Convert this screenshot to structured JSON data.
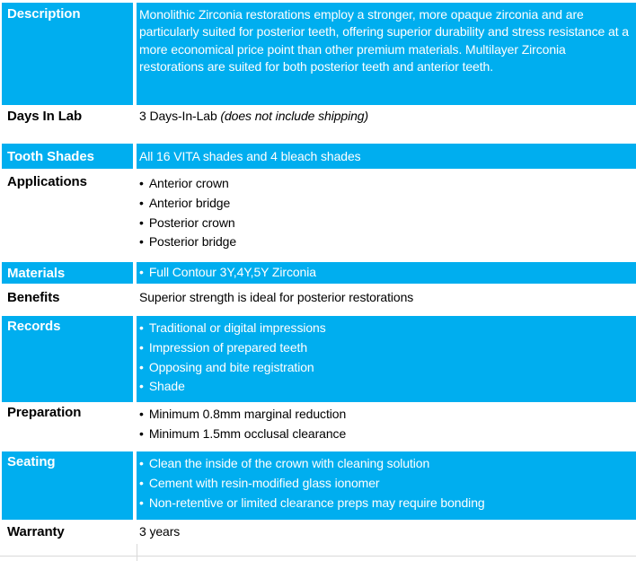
{
  "theme": {
    "accent_color": "#00AEEF",
    "text_on_accent": "#FFFFFF",
    "text_color": "#000000",
    "grid_line_color": "#D9D9D9",
    "background": "#FFFFFF"
  },
  "table": {
    "bullet_char": "•",
    "rows": [
      {
        "label": "Description",
        "highlight": true,
        "paragraph": "Monolithic Zirconia restorations employ a stronger, more opaque zirconia and are particularly suited for posterior teeth, offering superior durability and stress resistance at a more economical price point than other premium materials. Multilayer Zirconia restorations are suited for both posterior teeth and anterior teeth."
      },
      {
        "label": "Days In Lab",
        "highlight": false,
        "text": "3 Days-In-Lab ",
        "note": "(does not include shipping)"
      },
      {
        "label": "Tooth Shades",
        "highlight": true,
        "text": "All 16 VITA shades and 4 bleach shades"
      },
      {
        "label": "Applications",
        "highlight": false,
        "items": [
          "Anterior crown",
          "Anterior bridge",
          "Posterior crown",
          "Posterior bridge"
        ]
      },
      {
        "label": "Materials",
        "highlight": true,
        "items": [
          "Full Contour 3Y,4Y,5Y Zirconia"
        ]
      },
      {
        "label": "Benefits",
        "highlight": false,
        "text": "Superior strength is ideal for posterior restorations"
      },
      {
        "label": "Records",
        "highlight": true,
        "items": [
          "Traditional or digital impressions",
          "Impression of prepared teeth",
          "Opposing and bite registration",
          "Shade"
        ]
      },
      {
        "label": "Preparation",
        "highlight": false,
        "items": [
          "Minimum 0.8mm marginal reduction",
          "Minimum 1.5mm occlusal clearance"
        ]
      },
      {
        "label": "Seating",
        "highlight": true,
        "items": [
          "Clean the inside of the crown with cleaning solution",
          "Cement with resin-modified glass ionomer",
          "Non-retentive or limited clearance preps may require bonding"
        ]
      },
      {
        "label": "Warranty",
        "highlight": false,
        "text": "3 years"
      }
    ]
  }
}
